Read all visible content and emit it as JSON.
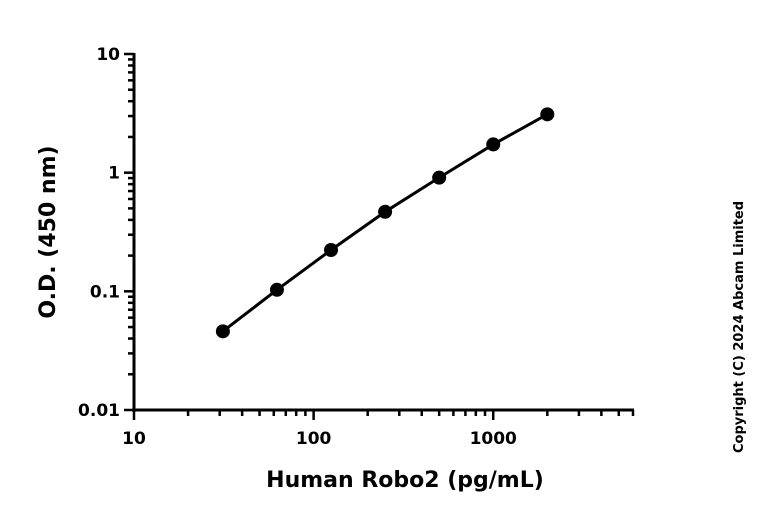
{
  "chart_data": {
    "type": "line",
    "title": "",
    "xlabel": "Human Robo2 (pg/mL)",
    "ylabel": "O.D. (450 nm)",
    "x_scale": "log",
    "y_scale": "log",
    "xlim": [
      10,
      6000
    ],
    "ylim": [
      0.01,
      10
    ],
    "x_ticks": [
      10,
      100,
      1000
    ],
    "x_tick_labels": [
      "10",
      "100",
      "1000"
    ],
    "y_ticks": [
      0.01,
      0.1,
      1,
      10
    ],
    "y_tick_labels": [
      "0.01",
      "0.1",
      "1",
      "10"
    ],
    "grid": false,
    "series": [
      {
        "x": [
          31.25,
          62.5,
          125,
          250,
          500,
          1000,
          2000
        ],
        "y": [
          0.046,
          0.103,
          0.223,
          0.468,
          0.908,
          1.73,
          3.1
        ],
        "marker": "circle",
        "color": "#000000"
      }
    ]
  },
  "copyright": "Copyright (C) 2024 Abcam Limited"
}
